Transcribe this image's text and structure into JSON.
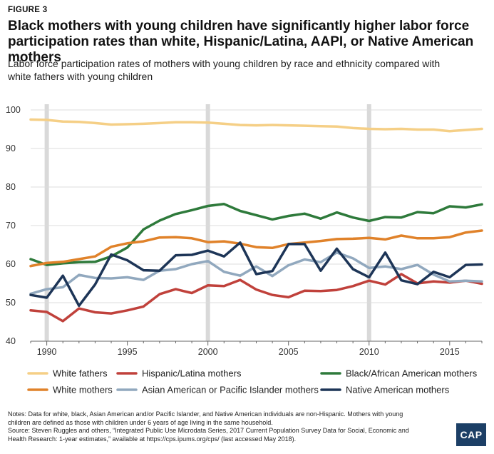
{
  "figure_label": "FIGURE 3",
  "title": "Black mothers with young children have significantly higher labor force participation rates than white, Hispanic/Latina, AAPI, or Native American mothers",
  "subtitle": "Labor force participation rates of mothers with young children by race and ethnicity compared with white fathers with young children",
  "notes": {
    "line1": "Notes: Data for white, black, Asian American and/or Pacific Islander, and Native American individuals are non-Hispanic. Mothers with young children are defined as those with children under 6 years of age living in the same household.",
    "line2": "Source: Steven Ruggles and others, “Integrated Public Use Microdata Series, 2017 Current Population Survey Data for Social, Economic and Health Research: 1-year estimates,” available at https://cps.ipums.org/cps/ (last accessed May 2018)."
  },
  "logo_text": "CAP",
  "chart_data": {
    "type": "line",
    "xlim": [
      1989,
      2017
    ],
    "ylim": [
      40,
      100
    ],
    "xticks": [
      1990,
      1995,
      2000,
      2005,
      2010,
      2015
    ],
    "yticks": [
      40,
      50,
      60,
      70,
      80,
      90,
      100
    ],
    "recession_years": [
      1990,
      2000,
      2010
    ],
    "grid": "horizontal",
    "legend_position": "bottom",
    "x": [
      1989,
      1990,
      1991,
      1992,
      1993,
      1994,
      1995,
      1996,
      1997,
      1998,
      1999,
      2000,
      2001,
      2002,
      2003,
      2004,
      2005,
      2006,
      2007,
      2008,
      2009,
      2010,
      2011,
      2012,
      2013,
      2014,
      2015,
      2016,
      2017
    ],
    "series": [
      {
        "name": "White fathers",
        "color": "#f5cf86",
        "values": [
          97.5,
          97.4,
          97.0,
          96.9,
          96.6,
          96.2,
          96.3,
          96.4,
          96.6,
          96.8,
          96.8,
          96.7,
          96.4,
          96.1,
          96.0,
          96.1,
          96.0,
          95.9,
          95.8,
          95.7,
          95.3,
          95.1,
          95.0,
          95.1,
          94.9,
          94.9,
          94.5,
          94.8,
          95.1
        ]
      },
      {
        "name": "Hispanic/Latina mothers",
        "color": "#c0413b",
        "values": [
          48.0,
          47.6,
          45.2,
          48.5,
          47.5,
          47.2,
          48.0,
          49.0,
          52.2,
          53.5,
          52.5,
          54.5,
          54.3,
          55.9,
          53.4,
          52.0,
          51.4,
          53.1,
          53.0,
          53.3,
          54.3,
          55.7,
          54.7,
          57.4,
          55.0,
          55.5,
          55.2,
          55.7,
          54.9
        ]
      },
      {
        "name": "Black/African American mothers",
        "color": "#2e7a3b",
        "values": [
          61.3,
          59.8,
          60.2,
          60.5,
          60.6,
          62.0,
          64.3,
          69.0,
          71.3,
          73.0,
          74.0,
          75.1,
          75.6,
          73.8,
          72.7,
          71.6,
          72.5,
          73.1,
          71.8,
          73.4,
          72.1,
          71.2,
          72.2,
          72.1,
          73.5,
          73.2,
          75.0,
          74.7,
          75.5
        ]
      },
      {
        "name": "White mothers",
        "color": "#e0822a",
        "values": [
          59.5,
          60.3,
          60.6,
          61.3,
          62.0,
          64.5,
          65.4,
          65.9,
          66.9,
          67.0,
          66.7,
          65.7,
          65.9,
          65.3,
          64.4,
          64.2,
          65.2,
          65.6,
          66.0,
          66.5,
          66.6,
          66.8,
          66.4,
          67.4,
          66.7,
          66.7,
          67.0,
          68.2,
          68.7
        ]
      },
      {
        "name": "Asian American or Pacific Islander mothers",
        "color": "#91a8be",
        "values": [
          52.3,
          53.5,
          54.0,
          57.2,
          56.4,
          56.3,
          56.6,
          55.9,
          58.3,
          58.7,
          60.0,
          60.8,
          58.0,
          57.0,
          59.4,
          56.9,
          59.7,
          61.2,
          60.5,
          63.0,
          61.5,
          59.0,
          59.4,
          58.7,
          59.8,
          57.3,
          55.5,
          55.7,
          55.5
        ]
      },
      {
        "name": "Native American mothers",
        "color": "#1d3557",
        "values": [
          52.0,
          51.3,
          57.0,
          49.2,
          54.7,
          62.5,
          61.0,
          58.4,
          58.3,
          62.3,
          62.4,
          63.5,
          62.0,
          65.6,
          57.4,
          58.2,
          65.2,
          65.2,
          58.3,
          64.0,
          58.7,
          56.6,
          63.0,
          55.8,
          54.8,
          58.0,
          56.6,
          59.8,
          59.9
        ]
      }
    ]
  }
}
